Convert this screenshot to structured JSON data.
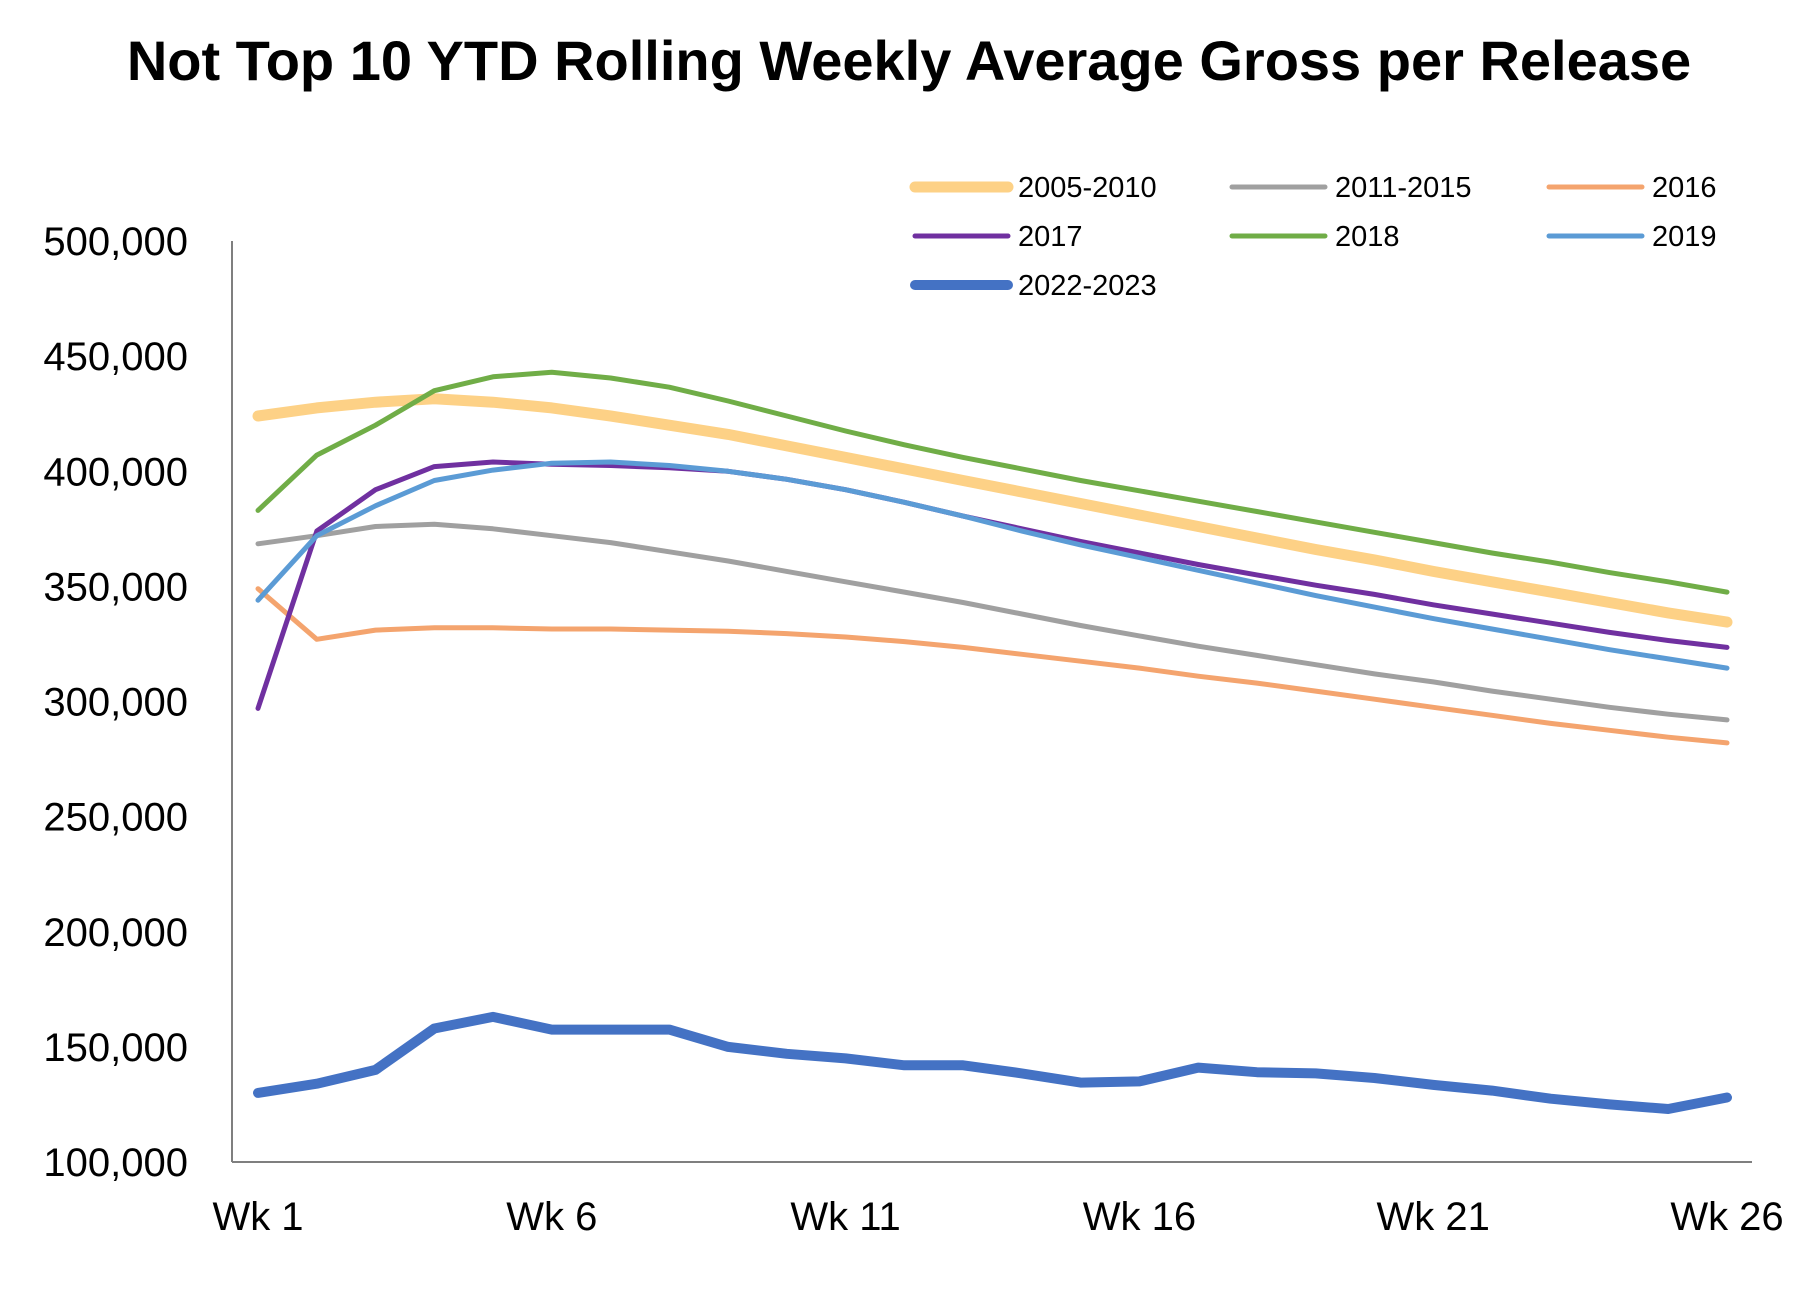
{
  "chart_data": {
    "type": "line",
    "title": "Not Top 10 YTD Rolling Weekly Average Gross per Release",
    "xlabel": "",
    "ylabel": "",
    "ylim": [
      100000,
      500000
    ],
    "yticks": [
      100000,
      150000,
      200000,
      250000,
      300000,
      350000,
      400000,
      450000,
      500000
    ],
    "ytick_labels": [
      "100,000",
      "150,000",
      "200,000",
      "250,000",
      "300,000",
      "350,000",
      "400,000",
      "450,000",
      "500,000"
    ],
    "x": [
      1,
      2,
      3,
      4,
      5,
      6,
      7,
      8,
      9,
      10,
      11,
      12,
      13,
      14,
      15,
      16,
      17,
      18,
      19,
      20,
      21,
      22,
      23,
      24,
      25,
      26
    ],
    "xticks": [
      1,
      6,
      11,
      16,
      21,
      26
    ],
    "xtick_labels": [
      "Wk 1",
      "Wk 6",
      "Wk 11",
      "Wk 16",
      "Wk 21",
      "Wk 26"
    ],
    "grid": false,
    "legend_position": "top-right",
    "series": [
      {
        "name": "2005-2010",
        "color": "#FDD186",
        "values": [
          424000,
          427500,
          430000,
          431500,
          430000,
          427500,
          424000,
          420000,
          416000,
          411000,
          406000,
          401000,
          396000,
          391000,
          386000,
          381000,
          376000,
          371000,
          366000,
          361500,
          356500,
          352000,
          347500,
          343000,
          338500,
          334500
        ]
      },
      {
        "name": "2011-2015",
        "color": "#A0A0A0",
        "values": [
          368500,
          372000,
          376000,
          377000,
          375000,
          372000,
          369000,
          365000,
          361000,
          356500,
          352000,
          347500,
          343000,
          338000,
          333000,
          328500,
          324000,
          320000,
          316000,
          312000,
          308500,
          304500,
          301000,
          297500,
          294500,
          292000
        ]
      },
      {
        "name": "2016",
        "color": "#F4A46E",
        "values": [
          349000,
          327000,
          331000,
          332000,
          332000,
          331500,
          331500,
          331000,
          330500,
          329500,
          328000,
          326000,
          323500,
          320500,
          317500,
          314500,
          311000,
          308000,
          304500,
          301000,
          297500,
          294000,
          290500,
          287500,
          284500,
          282000
        ]
      },
      {
        "name": "2017",
        "color": "#7030A0",
        "values": [
          297000,
          374000,
          392000,
          402000,
          404000,
          403000,
          402500,
          401500,
          400000,
          396500,
          392000,
          386500,
          380500,
          375000,
          369500,
          364500,
          359500,
          355000,
          350500,
          346500,
          342000,
          338000,
          334000,
          330000,
          326500,
          323500
        ]
      },
      {
        "name": "2018",
        "color": "#70AD47",
        "values": [
          383000,
          407000,
          420000,
          435000,
          441000,
          443000,
          440500,
          436500,
          430500,
          424000,
          417500,
          411500,
          406000,
          401000,
          396000,
          391500,
          387000,
          382500,
          378000,
          373500,
          369000,
          364500,
          360500,
          356000,
          352000,
          347500
        ]
      },
      {
        "name": "2019",
        "color": "#5B9BD5",
        "values": [
          344000,
          372000,
          385000,
          396000,
          400500,
          403500,
          404000,
          402500,
          400000,
          396500,
          392000,
          386500,
          380500,
          374000,
          368000,
          362500,
          357000,
          351500,
          346000,
          341000,
          336000,
          331500,
          327000,
          322500,
          318500,
          314500
        ]
      },
      {
        "name": "2022-2023",
        "color": "#4472C4",
        "values": [
          130000,
          134000,
          140000,
          158000,
          163000,
          157500,
          157500,
          157500,
          150000,
          147000,
          145000,
          142000,
          142000,
          138500,
          134500,
          135000,
          141000,
          139000,
          138500,
          136500,
          133500,
          131000,
          127500,
          125000,
          123000,
          128000
        ]
      }
    ]
  }
}
